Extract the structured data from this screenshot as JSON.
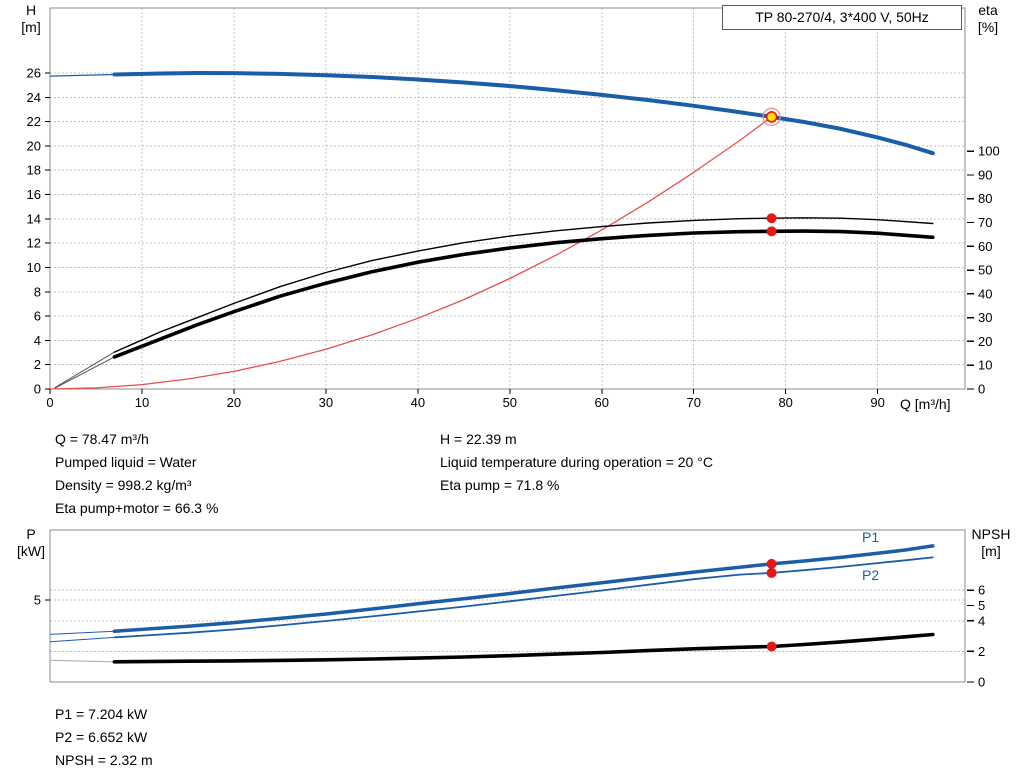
{
  "header": {
    "title": "TP 80-270/4, 3*400 V, 50Hz"
  },
  "axis_labels": {
    "h": "H",
    "h_unit": "[m]",
    "eta": "eta",
    "eta_unit": "[%]",
    "q": "Q [m³/h]",
    "p": "P",
    "p_unit": "[kW]",
    "npsh": "NPSH",
    "npsh_unit": "[m]",
    "p1": "P1",
    "p2": "P2"
  },
  "info_top_left": [
    "Q = 78.47 m³/h",
    "Pumped liquid = Water",
    "Density = 998.2 kg/m³",
    "Eta pump+motor = 66.3 %"
  ],
  "info_top_right": [
    "H = 22.39 m",
    "Liquid temperature during operation = 20 °C",
    "Eta pump = 71.8 %"
  ],
  "info_bottom": [
    "P1 = 7.204 kW",
    "P2 = 6.652 kW",
    "NPSH = 2.32 m"
  ],
  "duty_point": {
    "q_m3h": 78.47,
    "h_m": 22.39,
    "eta_pump_pct": 71.8,
    "eta_pump_motor_pct": 66.3,
    "p1_kw": 7.204,
    "p2_kw": 6.652,
    "npsh_m": 2.32,
    "pumped_liquid": "Water",
    "density_kg_m3": 998.2,
    "liquid_temperature_c": 20
  },
  "colors": {
    "curve_blue": "#1b5ea8",
    "curve_black": "#000000",
    "system_red": "#e85050",
    "marker_red": "#e81717",
    "marker_yellow": "#ffdf00",
    "duty_ring": "#f08a8a",
    "grid": "#c0c0c0",
    "border": "#8c8c8c"
  },
  "chart_data": [
    {
      "type": "line",
      "title": "TP 80-270/4, 3*400 V, 50Hz",
      "x": {
        "label": "Q [m³/h]",
        "min": 0,
        "max": 99.5,
        "ticks": [
          0,
          10,
          20,
          30,
          40,
          50,
          60,
          70,
          80,
          90
        ],
        "grid": [
          10,
          20,
          30,
          40,
          50,
          60,
          70,
          80,
          90
        ]
      },
      "y_left": {
        "label": "H [m]",
        "min": 0,
        "max": 31.35,
        "ticks": [
          0,
          2,
          4,
          6,
          8,
          10,
          12,
          14,
          16,
          18,
          20,
          22,
          24,
          26
        ],
        "grid": [
          2,
          4,
          6,
          8,
          10,
          12,
          14,
          16,
          18,
          20,
          22,
          24,
          26
        ]
      },
      "y_right": {
        "label": "eta [%]",
        "min": 0,
        "max": 160.2,
        "ticks": [
          0,
          10,
          20,
          30,
          40,
          50,
          60,
          70,
          80,
          90,
          100
        ],
        "grid": []
      },
      "series": [
        {
          "name": "system-curve",
          "axis": "left",
          "color": "#e85050",
          "width": 1.3,
          "points": [
            [
              0,
              0
            ],
            [
              5,
              0.09
            ],
            [
              10,
              0.36
            ],
            [
              15,
              0.82
            ],
            [
              20,
              1.45
            ],
            [
              25,
              2.27
            ],
            [
              30,
              3.27
            ],
            [
              35,
              4.45
            ],
            [
              40,
              5.82
            ],
            [
              45,
              7.36
            ],
            [
              50,
              9.09
            ],
            [
              55,
              11.0
            ],
            [
              60,
              13.09
            ],
            [
              65,
              15.36
            ],
            [
              70,
              17.82
            ],
            [
              75,
              20.45
            ],
            [
              78.47,
              22.39
            ]
          ]
        },
        {
          "name": "eta-pump",
          "axis": "right",
          "color": "#000000",
          "width": 1.4,
          "lead": [
            [
              0.5,
              0.5
            ],
            [
              7,
              15.5
            ]
          ],
          "lead_color": "#555555",
          "lead_width": 1,
          "points": [
            [
              7,
              15.5
            ],
            [
              12,
              24
            ],
            [
              16,
              30
            ],
            [
              20,
              36
            ],
            [
              25,
              43
            ],
            [
              30,
              49
            ],
            [
              35,
              54
            ],
            [
              40,
              58
            ],
            [
              45,
              61.5
            ],
            [
              50,
              64.3
            ],
            [
              55,
              66.5
            ],
            [
              60,
              68.3
            ],
            [
              65,
              69.8
            ],
            [
              70,
              70.9
            ],
            [
              75,
              71.6
            ],
            [
              78.47,
              71.8
            ],
            [
              82,
              72.0
            ],
            [
              86,
              71.8
            ],
            [
              90,
              71.2
            ],
            [
              96,
              69.6
            ]
          ]
        },
        {
          "name": "eta-pump-motor",
          "axis": "right",
          "color": "#000000",
          "width": 3.6,
          "lead": [
            [
              0.5,
              0.3
            ],
            [
              7,
              13.5
            ]
          ],
          "lead_color": "#555555",
          "lead_width": 1,
          "points": [
            [
              7,
              13.5
            ],
            [
              12,
              21
            ],
            [
              16,
              27
            ],
            [
              20,
              32.5
            ],
            [
              25,
              39
            ],
            [
              30,
              44.5
            ],
            [
              35,
              49.3
            ],
            [
              40,
              53.3
            ],
            [
              45,
              56.6
            ],
            [
              50,
              59.3
            ],
            [
              55,
              61.5
            ],
            [
              60,
              63.2
            ],
            [
              65,
              64.6
            ],
            [
              70,
              65.6
            ],
            [
              75,
              66.15
            ],
            [
              78.47,
              66.3
            ],
            [
              82,
              66.4
            ],
            [
              86,
              66.2
            ],
            [
              90,
              65.5
            ],
            [
              96,
              63.8
            ]
          ]
        },
        {
          "name": "head-curve",
          "axis": "left",
          "color": "#1b5ea8",
          "width": 4,
          "lead": [
            [
              0,
              25.75
            ],
            [
              7,
              25.88
            ]
          ],
          "lead_color": "#1b5ea8",
          "lead_width": 1.2,
          "points": [
            [
              7,
              25.88
            ],
            [
              12,
              25.96
            ],
            [
              16,
              26
            ],
            [
              20,
              25.99
            ],
            [
              25,
              25.93
            ],
            [
              30,
              25.82
            ],
            [
              35,
              25.67
            ],
            [
              40,
              25.47
            ],
            [
              45,
              25.22
            ],
            [
              50,
              24.93
            ],
            [
              55,
              24.59
            ],
            [
              60,
              24.2
            ],
            [
              65,
              23.78
            ],
            [
              70,
              23.3
            ],
            [
              74,
              22.88
            ],
            [
              78.47,
              22.39
            ],
            [
              82,
              21.97
            ],
            [
              86,
              21.4
            ],
            [
              90,
              20.7
            ],
            [
              93,
              20.1
            ],
            [
              96,
              19.4
            ]
          ]
        }
      ],
      "markers": [
        {
          "x": 78.47,
          "y": 71.8,
          "axis": "right",
          "style": "dot"
        },
        {
          "x": 78.47,
          "y": 66.3,
          "axis": "right",
          "style": "dot"
        },
        {
          "x": 78.47,
          "y": 22.39,
          "axis": "left",
          "style": "duty"
        }
      ]
    },
    {
      "type": "line",
      "title": "Power and NPSH curves",
      "x": {
        "label": "Q [m³/h]",
        "min": 0,
        "max": 99.5,
        "ticks": [],
        "grid": []
      },
      "y_left": {
        "label": "P [kW]",
        "min": 0,
        "max": 9.27,
        "ticks": [
          5
        ],
        "grid": [
          5
        ]
      },
      "y_right": {
        "label": "NPSH [m]",
        "min": 0,
        "max": 9.93,
        "ticks": [
          0,
          2,
          4,
          5,
          6
        ],
        "grid": [
          2,
          4,
          6
        ]
      },
      "series": [
        {
          "name": "p2-curve",
          "axis": "left",
          "color": "#1b5ea8",
          "width": 1.8,
          "lead": [
            [
              0,
              2.45
            ],
            [
              7,
              2.72
            ]
          ],
          "lead_color": "#1b5ea8",
          "lead_width": 1,
          "points": [
            [
              7,
              2.72
            ],
            [
              15,
              3.0
            ],
            [
              20,
              3.2
            ],
            [
              25,
              3.45
            ],
            [
              30,
              3.72
            ],
            [
              35,
              4.0
            ],
            [
              40,
              4.3
            ],
            [
              45,
              4.6
            ],
            [
              50,
              4.92
            ],
            [
              55,
              5.25
            ],
            [
              60,
              5.58
            ],
            [
              65,
              5.93
            ],
            [
              70,
              6.27
            ],
            [
              75,
              6.55
            ],
            [
              78.47,
              6.652
            ],
            [
              82,
              6.82
            ],
            [
              86,
              7.02
            ],
            [
              90,
              7.25
            ],
            [
              93,
              7.42
            ],
            [
              96,
              7.6
            ]
          ]
        },
        {
          "name": "p1-curve",
          "axis": "left",
          "color": "#1b5ea8",
          "width": 3.5,
          "lead": [
            [
              0,
              2.9
            ],
            [
              7,
              3.1
            ]
          ],
          "lead_color": "#1b5ea8",
          "lead_width": 1,
          "points": [
            [
              7,
              3.1
            ],
            [
              15,
              3.4
            ],
            [
              20,
              3.62
            ],
            [
              25,
              3.88
            ],
            [
              30,
              4.15
            ],
            [
              35,
              4.45
            ],
            [
              40,
              4.77
            ],
            [
              45,
              5.08
            ],
            [
              50,
              5.4
            ],
            [
              55,
              5.73
            ],
            [
              60,
              6.05
            ],
            [
              65,
              6.38
            ],
            [
              70,
              6.7
            ],
            [
              75,
              7.0
            ],
            [
              78.47,
              7.204
            ],
            [
              82,
              7.38
            ],
            [
              86,
              7.6
            ],
            [
              90,
              7.85
            ],
            [
              93,
              8.05
            ],
            [
              96,
              8.3
            ]
          ]
        },
        {
          "name": "npsh-curve",
          "axis": "right",
          "color": "#000000",
          "width": 3.6,
          "lead": [
            [
              0,
              1.42
            ],
            [
              7,
              1.32
            ]
          ],
          "lead_color": "#b0b0b0",
          "lead_width": 1.2,
          "points": [
            [
              7,
              1.32
            ],
            [
              15,
              1.36
            ],
            [
              20,
              1.38
            ],
            [
              25,
              1.41
            ],
            [
              30,
              1.45
            ],
            [
              35,
              1.5
            ],
            [
              40,
              1.56
            ],
            [
              45,
              1.63
            ],
            [
              50,
              1.72
            ],
            [
              55,
              1.82
            ],
            [
              60,
              1.93
            ],
            [
              65,
              2.05
            ],
            [
              70,
              2.17
            ],
            [
              75,
              2.27
            ],
            [
              78.47,
              2.32
            ],
            [
              82,
              2.45
            ],
            [
              86,
              2.62
            ],
            [
              90,
              2.8
            ],
            [
              93,
              2.95
            ],
            [
              96,
              3.1
            ]
          ]
        }
      ],
      "markers": [
        {
          "x": 78.47,
          "y": 7.204,
          "axis": "left",
          "style": "dot"
        },
        {
          "x": 78.47,
          "y": 6.652,
          "axis": "left",
          "style": "dot"
        },
        {
          "x": 78.47,
          "y": 2.32,
          "axis": "right",
          "style": "dot"
        }
      ]
    }
  ]
}
